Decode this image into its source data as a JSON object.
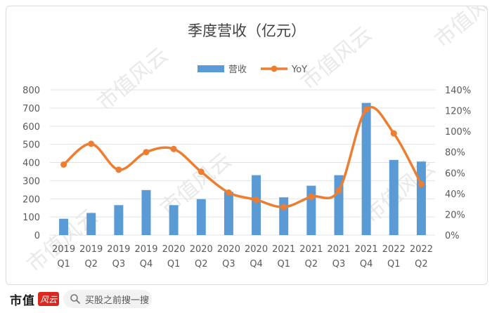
{
  "chart_data": {
    "type": "bar+line",
    "title": "季度营收（亿元）",
    "categories": [
      [
        "2019",
        "Q1"
      ],
      [
        "2019",
        "Q2"
      ],
      [
        "2019",
        "Q3"
      ],
      [
        "2019",
        "Q4"
      ],
      [
        "2020",
        "Q1"
      ],
      [
        "2020",
        "Q2"
      ],
      [
        "2020",
        "Q3"
      ],
      [
        "2020",
        "Q4"
      ],
      [
        "2021",
        "Q1"
      ],
      [
        "2021",
        "Q2"
      ],
      [
        "2021",
        "Q3"
      ],
      [
        "2021",
        "Q4"
      ],
      [
        "2022",
        "Q1"
      ],
      [
        "2022",
        "Q2"
      ]
    ],
    "series": [
      {
        "name": "营收",
        "type": "bar",
        "axis": "left",
        "color": "#5b9bd5",
        "values": [
          90,
          122,
          165,
          248,
          165,
          198,
          238,
          330,
          208,
          272,
          330,
          728,
          414,
          405
        ]
      },
      {
        "name": "YoY",
        "type": "line",
        "axis": "right",
        "color": "#ed7d31",
        "values": [
          0.68,
          0.88,
          0.63,
          0.8,
          0.83,
          0.61,
          0.41,
          0.34,
          0.27,
          0.37,
          0.43,
          1.21,
          0.98,
          0.49
        ]
      }
    ],
    "y_left": {
      "min": 0,
      "max": 800,
      "step": 100,
      "ticks": [
        "0",
        "100",
        "200",
        "300",
        "400",
        "500",
        "600",
        "700",
        "800"
      ]
    },
    "y_right": {
      "min": 0,
      "max": 1.4,
      "step": 0.2,
      "ticks": [
        "0%",
        "20%",
        "40%",
        "60%",
        "80%",
        "100%",
        "120%",
        "140%"
      ]
    },
    "grid": true,
    "legend_position": "top-center",
    "watermark": "市值风云"
  },
  "footer": {
    "brand": "市值",
    "brand_mark": "风云",
    "search_placeholder": "买股之前搜一搜",
    "search_icon": "search-icon"
  }
}
